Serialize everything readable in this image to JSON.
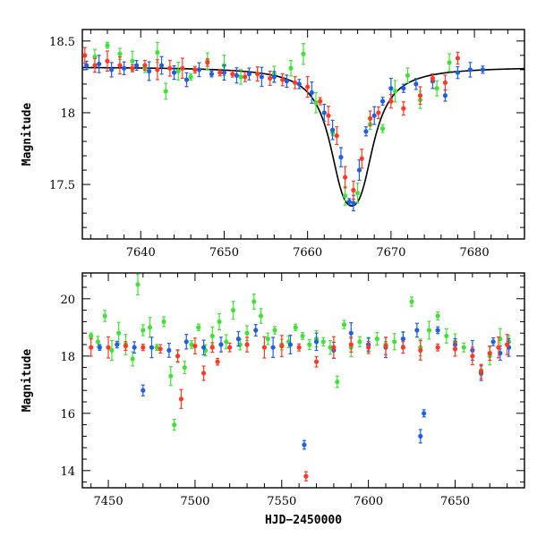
{
  "chart_data": [
    {
      "type": "scatter",
      "title": "",
      "xlabel": "",
      "ylabel": "Magnitude",
      "xlim": [
        7633,
        7686
      ],
      "ylim": [
        18.58,
        17.12
      ],
      "y_inverted": true,
      "x_ticks": [
        7640,
        7650,
        7660,
        7670,
        7680
      ],
      "x_tick_labels": [
        "7640",
        "7650",
        "7660",
        "7670",
        "7680"
      ],
      "y_ticks": [
        17.5,
        18,
        18.5
      ],
      "y_tick_labels": [
        "17.5",
        "18",
        "18.5"
      ],
      "grid": false,
      "series": [
        {
          "color": "#1f5fe0",
          "points": [
            [
              7633.5,
              18.33
            ],
            [
              7635.0,
              18.34
            ],
            [
              7636.5,
              18.3
            ],
            [
              7638.0,
              18.31
            ],
            [
              7639.5,
              18.33
            ],
            [
              7641.0,
              18.29
            ],
            [
              7642.5,
              18.33
            ],
            [
              7644.0,
              18.28
            ],
            [
              7645.5,
              18.23
            ],
            [
              7647.0,
              18.3
            ],
            [
              7648.5,
              18.27
            ],
            [
              7650.0,
              18.28
            ],
            [
              7651.5,
              18.26
            ],
            [
              7653.0,
              18.27
            ],
            [
              7654.5,
              18.25
            ],
            [
              7656.0,
              18.25
            ],
            [
              7657.5,
              18.22
            ],
            [
              7659.0,
              18.2
            ],
            [
              7660.5,
              18.14
            ],
            [
              7662.0,
              18.0
            ],
            [
              7663.0,
              17.88
            ],
            [
              7664.0,
              17.69
            ],
            [
              7665.0,
              17.38
            ],
            [
              7665.5,
              17.37
            ],
            [
              7666.2,
              17.6
            ],
            [
              7667.0,
              17.87
            ],
            [
              7668.0,
              17.98
            ],
            [
              7669.0,
              18.08
            ],
            [
              7670.0,
              18.17
            ],
            [
              7671.5,
              18.17
            ],
            [
              7673.0,
              18.2
            ],
            [
              7675.0,
              18.22
            ],
            [
              7676.5,
              18.12
            ],
            [
              7678.0,
              18.28
            ],
            [
              7679.5,
              18.3
            ],
            [
              7681.0,
              18.3
            ]
          ]
        },
        {
          "color": "#44e03a",
          "points": [
            [
              7634.5,
              18.39
            ],
            [
              7636.0,
              18.47
            ],
            [
              7637.5,
              18.41
            ],
            [
              7639.0,
              18.36
            ],
            [
              7640.5,
              18.31
            ],
            [
              7642.0,
              18.42
            ],
            [
              7643.0,
              18.15
            ],
            [
              7644.5,
              18.29
            ],
            [
              7646.0,
              18.25
            ],
            [
              7648.0,
              18.36
            ],
            [
              7650.0,
              18.33
            ],
            [
              7652.0,
              18.25
            ],
            [
              7654.0,
              18.27
            ],
            [
              7656.0,
              18.27
            ],
            [
              7658.0,
              18.31
            ],
            [
              7659.5,
              18.41
            ],
            [
              7661.0,
              18.07
            ],
            [
              7663.0,
              17.86
            ],
            [
              7664.5,
              17.42
            ],
            [
              7666.0,
              17.44
            ],
            [
              7667.5,
              17.92
            ],
            [
              7669.0,
              17.89
            ],
            [
              7670.5,
              18.15
            ],
            [
              7672.0,
              18.26
            ],
            [
              7673.5,
              18.09
            ],
            [
              7675.5,
              18.17
            ],
            [
              7677.0,
              18.35
            ]
          ]
        },
        {
          "color": "#ff3a28",
          "points": [
            [
              7633.3,
              18.4
            ],
            [
              7634.5,
              18.33
            ],
            [
              7636.0,
              18.36
            ],
            [
              7637.5,
              18.33
            ],
            [
              7639.0,
              18.31
            ],
            [
              7640.5,
              18.33
            ],
            [
              7642.0,
              18.3
            ],
            [
              7643.5,
              18.31
            ],
            [
              7645.0,
              18.31
            ],
            [
              7646.5,
              18.3
            ],
            [
              7648.0,
              18.35
            ],
            [
              7649.5,
              18.28
            ],
            [
              7651.0,
              18.27
            ],
            [
              7652.5,
              18.25
            ],
            [
              7654.0,
              18.27
            ],
            [
              7655.5,
              18.24
            ],
            [
              7657.0,
              18.23
            ],
            [
              7658.5,
              18.21
            ],
            [
              7660.0,
              18.18
            ],
            [
              7661.5,
              18.08
            ],
            [
              7662.5,
              17.98
            ],
            [
              7663.5,
              17.84
            ],
            [
              7664.5,
              17.55
            ],
            [
              7665.5,
              17.46
            ],
            [
              7666.5,
              17.68
            ],
            [
              7667.5,
              17.96
            ],
            [
              7668.5,
              18.0
            ],
            [
              7670.0,
              18.08
            ],
            [
              7671.5,
              18.03
            ],
            [
              7673.5,
              18.12
            ],
            [
              7675.0,
              18.24
            ],
            [
              7676.5,
              18.21
            ],
            [
              7678.0,
              18.38
            ]
          ]
        }
      ],
      "model_curve": {
        "color": "#000000",
        "baseline": 18.32,
        "peak": 17.35,
        "t0": 7665.3,
        "width": 2.35
      }
    },
    {
      "type": "scatter",
      "title": "",
      "xlabel": "HJD−2450000",
      "ylabel": "Magnitude",
      "xlim": [
        7435,
        7690
      ],
      "ylim": [
        20.9,
        13.4
      ],
      "y_inverted": true,
      "x_ticks": [
        7450,
        7500,
        7550,
        7600,
        7650
      ],
      "x_tick_labels": [
        "7450",
        "7500",
        "7550",
        "7600",
        "7650"
      ],
      "y_ticks": [
        14,
        16,
        18,
        20
      ],
      "y_tick_labels": [
        "14",
        "16",
        "18",
        "20"
      ],
      "grid": false,
      "series": [
        {
          "color": "#1f5fe0",
          "points": [
            [
              7445,
              18.3
            ],
            [
              7455,
              18.4
            ],
            [
              7465,
              18.3
            ],
            [
              7470,
              16.8
            ],
            [
              7475,
              18.3
            ],
            [
              7485,
              18.2
            ],
            [
              7495,
              18.5
            ],
            [
              7505,
              18.3
            ],
            [
              7515,
              18.4
            ],
            [
              7525,
              18.6
            ],
            [
              7535,
              18.9
            ],
            [
              7545,
              18.3
            ],
            [
              7555,
              18.4
            ],
            [
              7563,
              14.9
            ],
            [
              7570,
              18.5
            ],
            [
              7580,
              18.2
            ],
            [
              7590,
              18.8
            ],
            [
              7600,
              18.4
            ],
            [
              7610,
              18.3
            ],
            [
              7620,
              18.6
            ],
            [
              7628,
              18.9
            ],
            [
              7630,
              15.2
            ],
            [
              7632,
              16.0
            ],
            [
              7640,
              18.9
            ],
            [
              7650,
              18.4
            ],
            [
              7660,
              18.2
            ],
            [
              7665,
              17.4
            ],
            [
              7672,
              18.5
            ],
            [
              7676,
              18.1
            ],
            [
              7681,
              18.3
            ]
          ]
        },
        {
          "color": "#44e03a",
          "points": [
            [
              7440,
              18.7
            ],
            [
              7444,
              18.5
            ],
            [
              7448,
              19.4
            ],
            [
              7452,
              18.2
            ],
            [
              7456,
              18.8
            ],
            [
              7460,
              18.4
            ],
            [
              7464,
              17.9
            ],
            [
              7467,
              20.5
            ],
            [
              7470,
              18.9
            ],
            [
              7474,
              19.0
            ],
            [
              7478,
              18.3
            ],
            [
              7482,
              19.2
            ],
            [
              7486,
              17.3
            ],
            [
              7488,
              15.6
            ],
            [
              7490,
              18.0
            ],
            [
              7494,
              17.6
            ],
            [
              7498,
              18.4
            ],
            [
              7502,
              19.0
            ],
            [
              7506,
              18.2
            ],
            [
              7510,
              18.7
            ],
            [
              7514,
              19.2
            ],
            [
              7518,
              18.5
            ],
            [
              7522,
              19.6
            ],
            [
              7526,
              18.4
            ],
            [
              7530,
              18.8
            ],
            [
              7534,
              19.9
            ],
            [
              7538,
              19.4
            ],
            [
              7542,
              18.6
            ],
            [
              7546,
              18.9
            ],
            [
              7550,
              18.4
            ],
            [
              7554,
              18.5
            ],
            [
              7558,
              19.0
            ],
            [
              7562,
              18.7
            ],
            [
              7566,
              18.4
            ],
            [
              7570,
              18.6
            ],
            [
              7574,
              18.5
            ],
            [
              7578,
              18.3
            ],
            [
              7582,
              17.1
            ],
            [
              7586,
              19.1
            ],
            [
              7590,
              18.3
            ],
            [
              7595,
              18.5
            ],
            [
              7600,
              18.4
            ],
            [
              7605,
              18.6
            ],
            [
              7610,
              18.4
            ],
            [
              7615,
              18.5
            ],
            [
              7620,
              18.6
            ],
            [
              7625,
              19.9
            ],
            [
              7630,
              18.3
            ],
            [
              7635,
              18.9
            ],
            [
              7640,
              19.4
            ],
            [
              7645,
              18.7
            ],
            [
              7650,
              18.5
            ],
            [
              7655,
              18.3
            ],
            [
              7665,
              17.5
            ],
            [
              7670,
              18.0
            ],
            [
              7676,
              18.6
            ],
            [
              7681,
              18.5
            ]
          ]
        },
        {
          "color": "#ff3a28",
          "points": [
            [
              7440,
              18.3
            ],
            [
              7450,
              18.3
            ],
            [
              7460,
              18.35
            ],
            [
              7470,
              18.3
            ],
            [
              7480,
              18.25
            ],
            [
              7490,
              18.0
            ],
            [
              7492,
              16.5
            ],
            [
              7500,
              18.35
            ],
            [
              7505,
              17.4
            ],
            [
              7510,
              18.3
            ],
            [
              7513,
              17.8
            ],
            [
              7520,
              18.3
            ],
            [
              7530,
              18.4
            ],
            [
              7540,
              18.3
            ],
            [
              7550,
              18.35
            ],
            [
              7560,
              18.3
            ],
            [
              7564,
              13.8
            ],
            [
              7570,
              17.8
            ],
            [
              7580,
              18.3
            ],
            [
              7590,
              18.4
            ],
            [
              7600,
              18.3
            ],
            [
              7610,
              18.35
            ],
            [
              7620,
              18.3
            ],
            [
              7630,
              18.2
            ],
            [
              7640,
              18.3
            ],
            [
              7650,
              18.25
            ],
            [
              7660,
              18.0
            ],
            [
              7665,
              17.46
            ],
            [
              7670,
              18.1
            ],
            [
              7675,
              18.3
            ],
            [
              7680,
              18.4
            ]
          ]
        }
      ],
      "model_curve": null
    }
  ]
}
